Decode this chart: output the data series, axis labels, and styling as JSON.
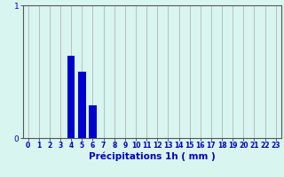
{
  "title": "",
  "xlabel": "Précipitations 1h ( mm )",
  "hours": [
    0,
    1,
    2,
    3,
    4,
    5,
    6,
    7,
    8,
    9,
    10,
    11,
    12,
    13,
    14,
    15,
    16,
    17,
    18,
    19,
    20,
    21,
    22,
    23
  ],
  "values": [
    0,
    0,
    0,
    0,
    0.62,
    0.5,
    0.25,
    0,
    0,
    0,
    0,
    0,
    0,
    0,
    0,
    0,
    0,
    0,
    0,
    0,
    0,
    0,
    0,
    0
  ],
  "bar_color": "#0000cc",
  "background_color": "#d8f5f0",
  "grid_color": "#aaaaaa",
  "axis_color": "#555555",
  "label_color": "#0000bb",
  "ylim": [
    0,
    1
  ],
  "xlim": [
    -0.5,
    23.5
  ],
  "yticks": [
    0,
    1
  ],
  "xlabel_fontsize": 7.5,
  "tick_fontsize": 5.5
}
